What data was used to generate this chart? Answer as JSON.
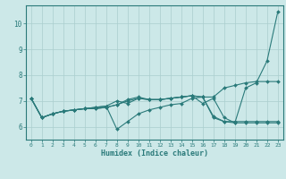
{
  "xlabel": "Humidex (Indice chaleur)",
  "xlim": [
    -0.5,
    23.5
  ],
  "ylim": [
    5.5,
    10.7
  ],
  "yticks": [
    6,
    7,
    8,
    9,
    10
  ],
  "xticks": [
    0,
    1,
    2,
    3,
    4,
    5,
    6,
    7,
    8,
    9,
    10,
    11,
    12,
    13,
    14,
    15,
    16,
    17,
    18,
    19,
    20,
    21,
    22,
    23
  ],
  "bg_color": "#cce8e8",
  "grid_color": "#aacece",
  "line_color": "#2a7a7a",
  "lines": [
    [
      7.1,
      6.35,
      6.5,
      6.6,
      6.65,
      6.7,
      6.7,
      6.75,
      6.85,
      7.05,
      7.15,
      7.05,
      7.05,
      7.1,
      7.15,
      7.2,
      7.15,
      7.15,
      7.5,
      7.6,
      7.7,
      7.75,
      7.75,
      7.75
    ],
    [
      7.1,
      6.35,
      6.5,
      6.6,
      6.65,
      6.7,
      6.7,
      6.75,
      6.85,
      7.0,
      7.1,
      7.05,
      7.05,
      7.1,
      7.15,
      7.2,
      7.15,
      6.35,
      6.2,
      6.2,
      6.2,
      6.2,
      6.2,
      6.2
    ],
    [
      7.1,
      6.35,
      6.5,
      6.6,
      6.65,
      6.7,
      6.75,
      6.8,
      5.9,
      6.2,
      6.5,
      6.65,
      6.75,
      6.85,
      6.9,
      7.1,
      7.15,
      6.4,
      6.2,
      6.15,
      6.15,
      6.15,
      6.15,
      6.15
    ],
    [
      7.1,
      6.35,
      6.5,
      6.6,
      6.65,
      6.7,
      6.75,
      6.8,
      7.0,
      6.9,
      7.1,
      7.05,
      7.05,
      7.1,
      7.15,
      7.2,
      6.9,
      7.1,
      6.35,
      6.15,
      7.5,
      7.7,
      8.55,
      10.45
    ]
  ]
}
